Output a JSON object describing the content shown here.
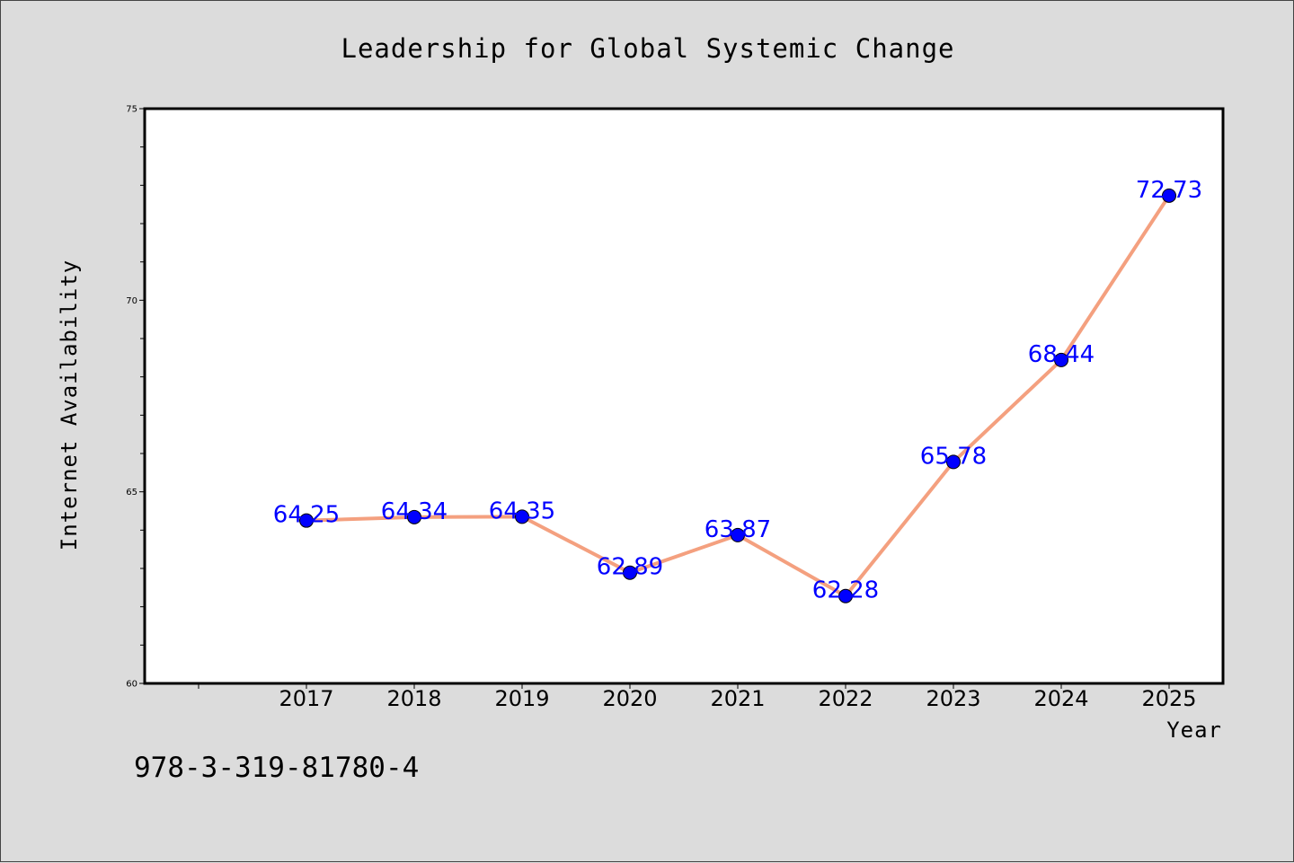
{
  "chart_data": {
    "type": "line",
    "title": "Leadership for Global Systemic Change",
    "xlabel": "Year",
    "ylabel": "Internet Availability",
    "x": [
      "2017",
      "2018",
      "2019",
      "2020",
      "2021",
      "2022",
      "2023",
      "2024",
      "2025"
    ],
    "series": [
      {
        "values": [
          64.25,
          64.34,
          64.35,
          62.89,
          63.87,
          62.28,
          65.78,
          68.44,
          72.73
        ],
        "line_color": "#f4a07f",
        "marker_color": "#0000ff"
      }
    ],
    "data_labels": [
      "64.25",
      "64.34",
      "64.35",
      "62.89",
      "63.87",
      "62.28",
      "65.78",
      "68.44",
      "72.73"
    ],
    "ylim": [
      60,
      75
    ],
    "yticks": [
      "60",
      "65",
      "70",
      "75"
    ],
    "grid": false,
    "legend": "none"
  },
  "footer": {
    "isbn": "978-3-319-81780-4"
  },
  "colors": {
    "background": "#dcdcdc",
    "plot_background": "#ffffff",
    "line": "#f4a07f",
    "marker": "#0000ff",
    "data_label": "#0000ff"
  }
}
